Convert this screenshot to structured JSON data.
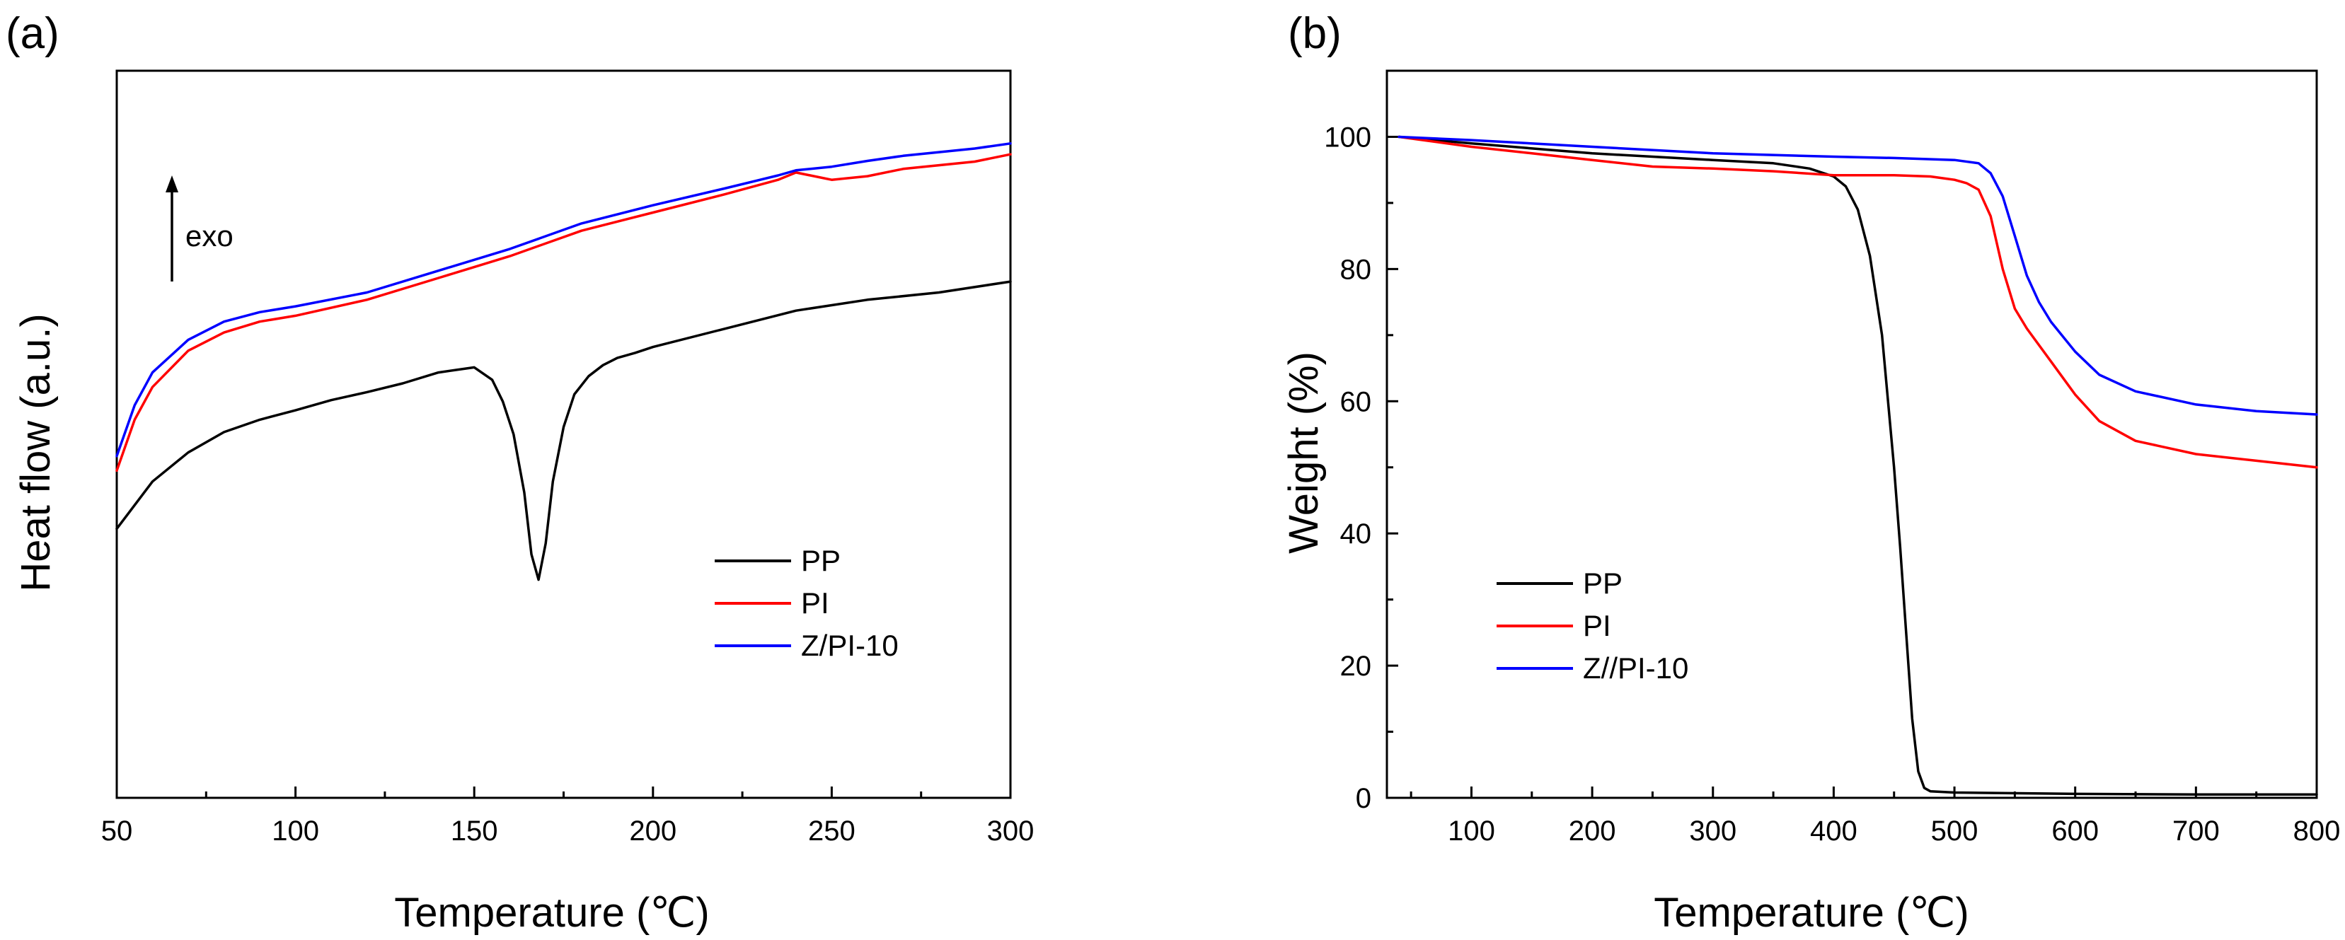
{
  "chart_data": [
    {
      "type": "line",
      "panel_label": "(a)",
      "xlabel": "Temperature (℃)",
      "ylabel": "Heat flow (a.u.)",
      "xlim": [
        50,
        300
      ],
      "ylim": [
        0,
        100
      ],
      "x_ticks": [
        50,
        100,
        150,
        200,
        250,
        300
      ],
      "y_ticks": [],
      "annotation": "exo",
      "legend_position": "lower-right",
      "grid": false,
      "series": [
        {
          "name": "PP",
          "color": "#000000",
          "x": [
            50,
            60,
            70,
            80,
            90,
            100,
            110,
            120,
            130,
            140,
            150,
            155,
            158,
            161,
            164,
            166,
            168,
            170,
            172,
            175,
            178,
            182,
            186,
            190,
            195,
            200,
            220,
            240,
            260,
            280,
            300
          ],
          "y": [
            37.0,
            43.5,
            47.5,
            50.3,
            52.0,
            53.3,
            54.7,
            55.8,
            57.0,
            58.5,
            59.2,
            57.5,
            54.5,
            50.0,
            42.0,
            33.5,
            30.0,
            35.0,
            43.5,
            51.0,
            55.5,
            58.0,
            59.5,
            60.5,
            61.2,
            62.0,
            64.5,
            67.0,
            68.5,
            69.5,
            71.0
          ]
        },
        {
          "name": "PI",
          "color": "#ff0000",
          "x": [
            50,
            55,
            60,
            70,
            80,
            90,
            100,
            120,
            140,
            160,
            180,
            200,
            220,
            235,
            240,
            250,
            260,
            270,
            280,
            290,
            300
          ],
          "y": [
            45.0,
            52.0,
            56.5,
            61.5,
            64.0,
            65.5,
            66.3,
            68.5,
            71.5,
            74.5,
            78.0,
            80.5,
            83.0,
            85.0,
            86.0,
            85.0,
            85.5,
            86.5,
            87.0,
            87.5,
            88.5
          ]
        },
        {
          "name": "Z/PI-10",
          "color": "#0000ff",
          "x": [
            50,
            55,
            60,
            70,
            80,
            90,
            100,
            120,
            140,
            160,
            180,
            200,
            220,
            235,
            240,
            250,
            260,
            270,
            280,
            290,
            300
          ],
          "y": [
            47.0,
            54.0,
            58.5,
            63.0,
            65.5,
            66.8,
            67.6,
            69.5,
            72.5,
            75.5,
            79.0,
            81.5,
            83.8,
            85.6,
            86.3,
            86.8,
            87.6,
            88.3,
            88.8,
            89.3,
            90.0
          ]
        }
      ]
    },
    {
      "type": "line",
      "panel_label": "(b)",
      "xlabel": "Temperature (℃)",
      "ylabel": "Weight (%)",
      "xlim": [
        30,
        800
      ],
      "ylim": [
        0,
        110
      ],
      "x_ticks": [
        100,
        200,
        300,
        400,
        500,
        600,
        700,
        800
      ],
      "y_ticks": [
        0,
        20,
        40,
        60,
        80,
        100
      ],
      "legend_position": "lower-left",
      "grid": false,
      "series": [
        {
          "name": "PP",
          "color": "#000000",
          "x": [
            40,
            100,
            200,
            300,
            350,
            380,
            400,
            410,
            420,
            430,
            440,
            450,
            455,
            460,
            465,
            470,
            475,
            480,
            500,
            600,
            700,
            800
          ],
          "y": [
            100,
            99,
            97.5,
            96.5,
            96,
            95.2,
            94,
            92.5,
            89,
            82,
            70,
            50,
            38,
            25,
            12,
            4,
            1.5,
            1,
            0.8,
            0.6,
            0.5,
            0.5
          ]
        },
        {
          "name": "PI",
          "color": "#ff0000",
          "x": [
            40,
            100,
            150,
            200,
            250,
            300,
            350,
            400,
            450,
            480,
            500,
            510,
            520,
            530,
            540,
            550,
            560,
            580,
            600,
            620,
            650,
            700,
            750,
            800
          ],
          "y": [
            100,
            98.5,
            97.5,
            96.5,
            95.5,
            95.2,
            94.8,
            94.2,
            94.2,
            94,
            93.5,
            93,
            92,
            88,
            80,
            74,
            71,
            66,
            61,
            57,
            54,
            52,
            51,
            50
          ]
        },
        {
          "name": "Z//PI-10",
          "color": "#0000ff",
          "x": [
            40,
            100,
            200,
            300,
            400,
            450,
            500,
            520,
            530,
            540,
            550,
            560,
            570,
            580,
            600,
            620,
            650,
            700,
            750,
            800
          ],
          "y": [
            100,
            99.5,
            98.5,
            97.5,
            97,
            96.8,
            96.5,
            96,
            94.5,
            91,
            85,
            79,
            75,
            72,
            67.5,
            64,
            61.5,
            59.5,
            58.5,
            58
          ]
        }
      ]
    }
  ]
}
